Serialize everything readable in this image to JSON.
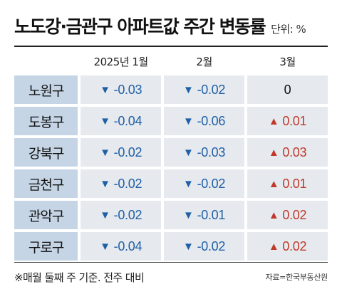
{
  "colors": {
    "decrease": "#1f5fa6",
    "increase": "#c0392b",
    "neutral": "#111111",
    "name_bg": "#c5d5e5",
    "value_bg": "#e6eaee"
  },
  "chart_data": {
    "type": "table",
    "title": "노도강·금관구 아파트값 주간 변동률",
    "unit": "단위: %",
    "columns": [
      "2025년 1월",
      "2월",
      "3월"
    ],
    "rows": [
      {
        "district": "노원구",
        "values": [
          -0.03,
          -0.02,
          0
        ],
        "display": [
          "-0.03",
          "-0.02",
          "0"
        ]
      },
      {
        "district": "도봉구",
        "values": [
          -0.04,
          -0.06,
          0.01
        ],
        "display": [
          "-0.04",
          "-0.06",
          "0.01"
        ]
      },
      {
        "district": "강북구",
        "values": [
          -0.02,
          -0.03,
          0.03
        ],
        "display": [
          "-0.02",
          "-0.03",
          "0.03"
        ]
      },
      {
        "district": "금천구",
        "values": [
          -0.02,
          -0.02,
          0.01
        ],
        "display": [
          "-0.02",
          "-0.02",
          "0.01"
        ]
      },
      {
        "district": "관악구",
        "values": [
          -0.02,
          -0.01,
          0.02
        ],
        "display": [
          "-0.02",
          "-0.01",
          "0.02"
        ]
      },
      {
        "district": "구로구",
        "values": [
          -0.04,
          -0.02,
          0.02
        ],
        "display": [
          "-0.04",
          "-0.02",
          "0.02"
        ]
      }
    ],
    "note": "※매월 둘째 주 기준. 전주 대비",
    "source": "자료=한국부동산원"
  }
}
